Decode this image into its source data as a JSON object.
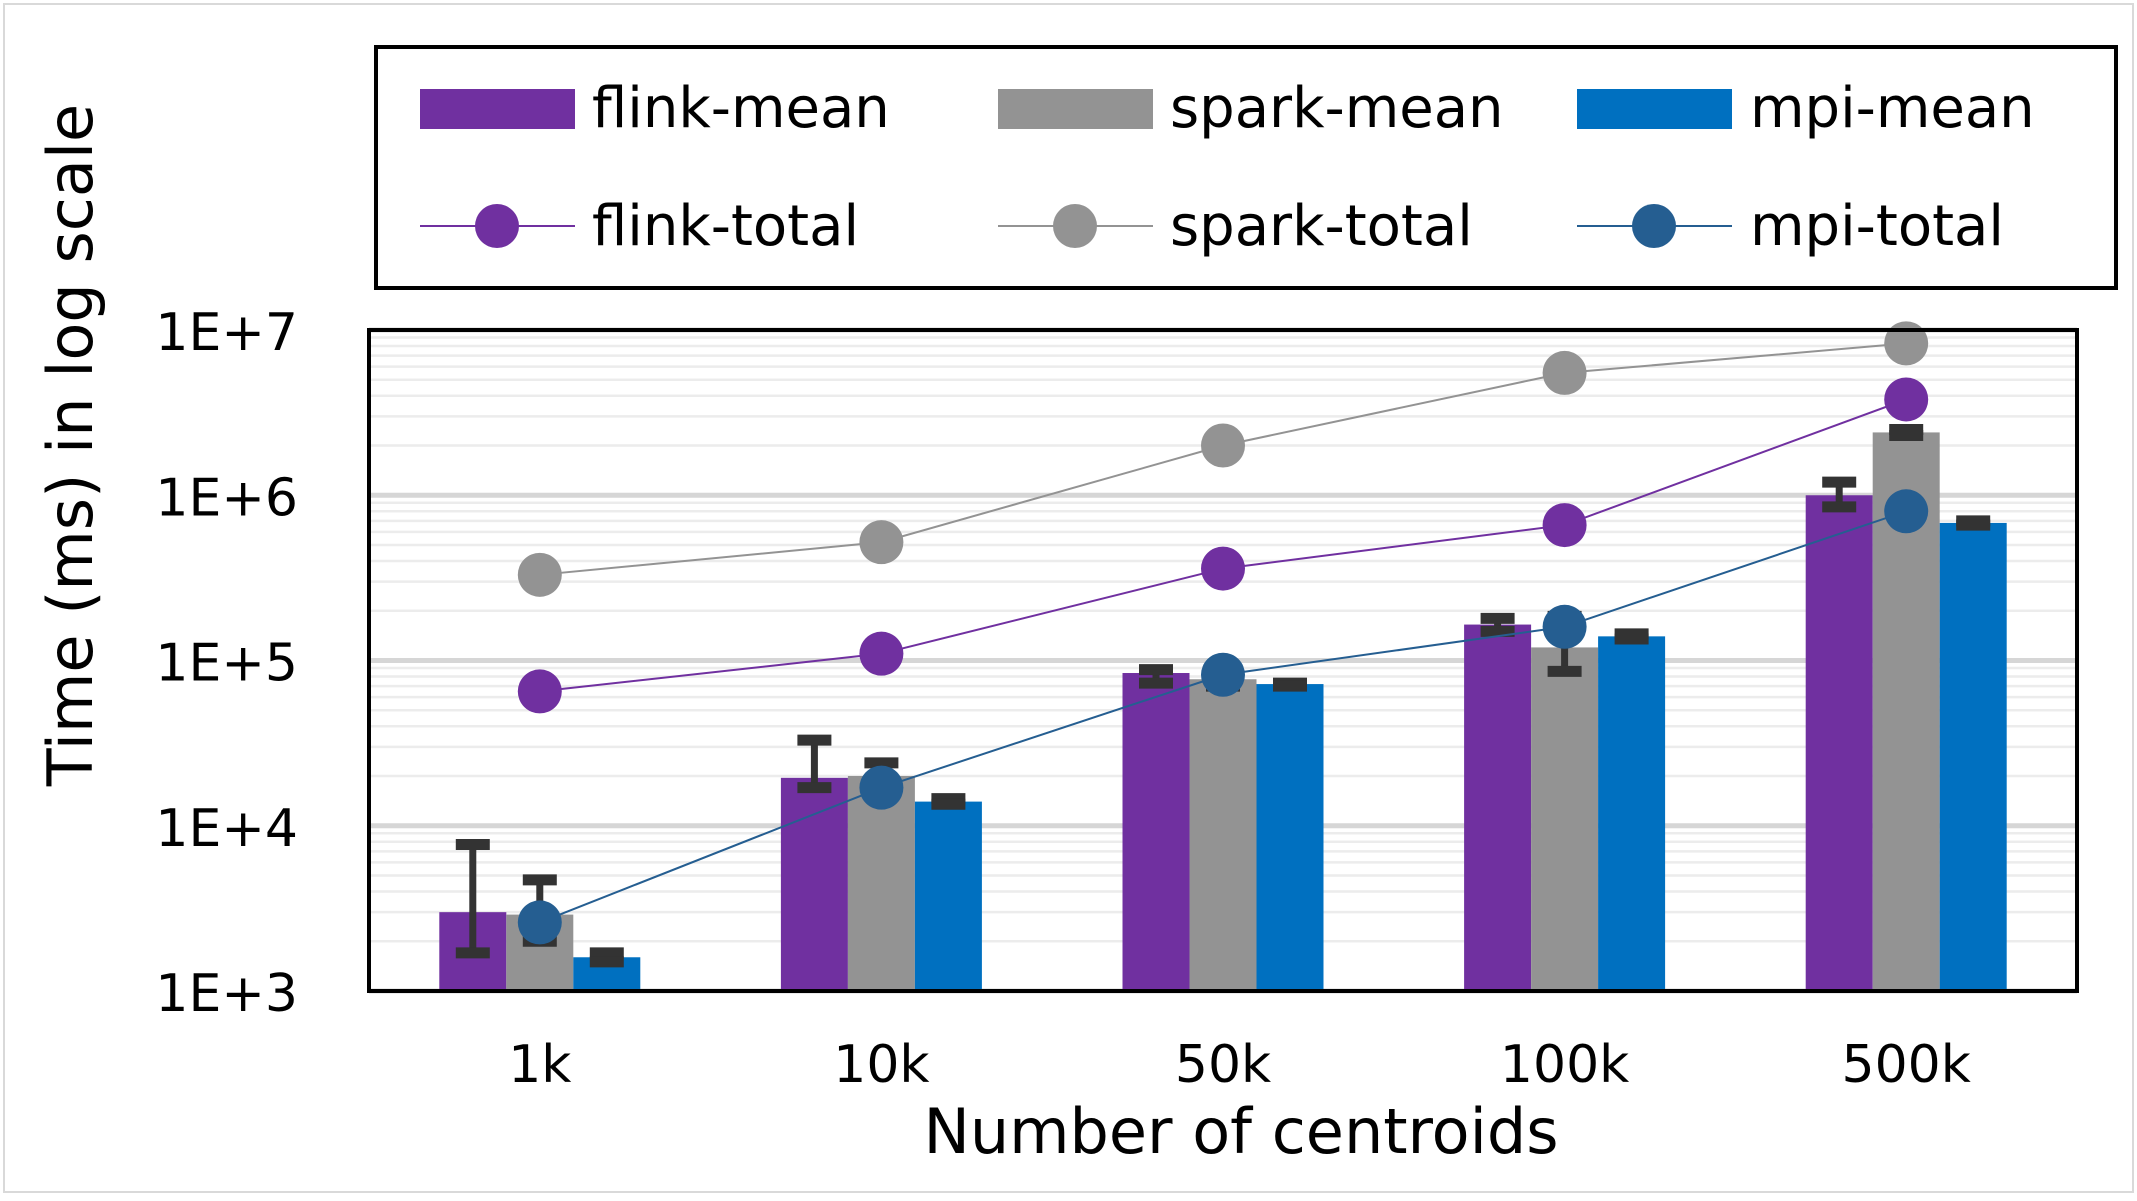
{
  "chart_data": {
    "type": "bar",
    "ylabel": "Time (ms) in log scale",
    "xlabel": "Number of centroids",
    "y_scale": "log",
    "ylim": [
      1000,
      10000000
    ],
    "y_ticks": [
      1000,
      10000,
      100000,
      1000000,
      10000000
    ],
    "y_tick_labels": [
      "1E+3",
      "1E+4",
      "1E+5",
      "1E+6",
      "1E+7"
    ],
    "categories": [
      "1k",
      "10k",
      "50k",
      "100k",
      "500k"
    ],
    "grid": "horizontal minor and major gridlines",
    "legend_position": "top, above plot area",
    "bar_series": [
      {
        "name": "flink-mean",
        "color": "#7030a0",
        "values": [
          3000,
          19500,
          84000,
          165000,
          1000000
        ],
        "errors": [
          [
            1700,
            7700
          ],
          [
            17000,
            33000
          ],
          [
            73000,
            88000
          ],
          [
            150000,
            180000
          ],
          [
            850000,
            1200000
          ]
        ]
      },
      {
        "name": "spark-mean",
        "color": "#939393",
        "values": [
          2900,
          20000,
          77000,
          120000,
          2400000
        ],
        "errors": [
          [
            2000,
            4700
          ],
          [
            19000,
            24000
          ],
          [
            70000,
            80000
          ],
          [
            86000,
            185000
          ],
          [
            2300000,
            2500000
          ]
        ]
      },
      {
        "name": "mpi-mean",
        "color": "#0070c0",
        "values": [
          1600,
          14000,
          72000,
          140000,
          680000
        ],
        "errors": [
          [
            1500,
            1700
          ],
          [
            13500,
            14600
          ],
          [
            70000,
            73000
          ],
          [
            135000,
            145000
          ],
          [
            660000,
            700000
          ]
        ]
      }
    ],
    "line_series": [
      {
        "name": "flink-total",
        "color": "#7030a0",
        "values": [
          65000,
          110000,
          360000,
          660000,
          3800000
        ]
      },
      {
        "name": "spark-total",
        "color": "#939393",
        "values": [
          330000,
          520000,
          2000000,
          5500000,
          8300000
        ]
      },
      {
        "name": "mpi-total",
        "color": "#255e91",
        "values": [
          2600,
          17000,
          82000,
          160000,
          800000
        ]
      }
    ]
  }
}
